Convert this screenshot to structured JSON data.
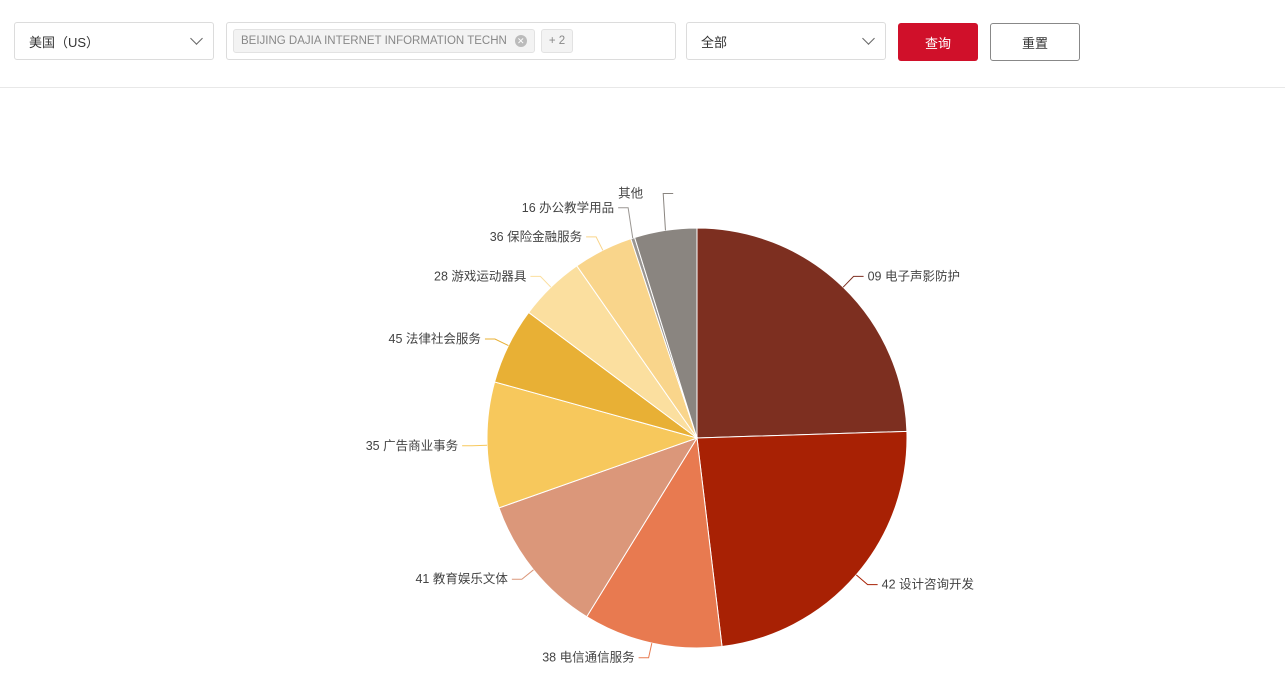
{
  "filters": {
    "country": "美国（US）",
    "company_tag": "BEIJING DAJIA INTERNET INFORMATION TECHN",
    "more_count": "+ 2",
    "category": "全部",
    "query_label": "查询",
    "reset_label": "重置"
  },
  "colors": {
    "accent": "#d0102a"
  },
  "chart_data": {
    "type": "pie",
    "unit": "percent (estimated)",
    "start": "12 o'clock, clockwise",
    "slices": [
      {
        "label": "09 电子声影防护",
        "value": 24.5,
        "color": "#7d2f20"
      },
      {
        "label": "42 设计咨询开发",
        "value": 23.6,
        "color": "#a82104"
      },
      {
        "label": "38 电信通信服务",
        "value": 10.7,
        "color": "#e87a50"
      },
      {
        "label": "41 教育娱乐文体",
        "value": 10.8,
        "color": "#db977a"
      },
      {
        "label": "35  广告商业事务",
        "value": 9.7,
        "color": "#f7c85c"
      },
      {
        "label": "45 法律社会服务",
        "value": 5.9,
        "color": "#e8b035"
      },
      {
        "label": "28 游戏运动器具",
        "value": 5.1,
        "color": "#fbdf9f"
      },
      {
        "label": "36 保险金融服务",
        "value": 4.6,
        "color": "#f9d58b"
      },
      {
        "label": "16 办公教学用品",
        "value": 0.3,
        "color": "#9a9692"
      },
      {
        "label": "其他",
        "value": 4.8,
        "color": "#8a8580"
      }
    ]
  }
}
